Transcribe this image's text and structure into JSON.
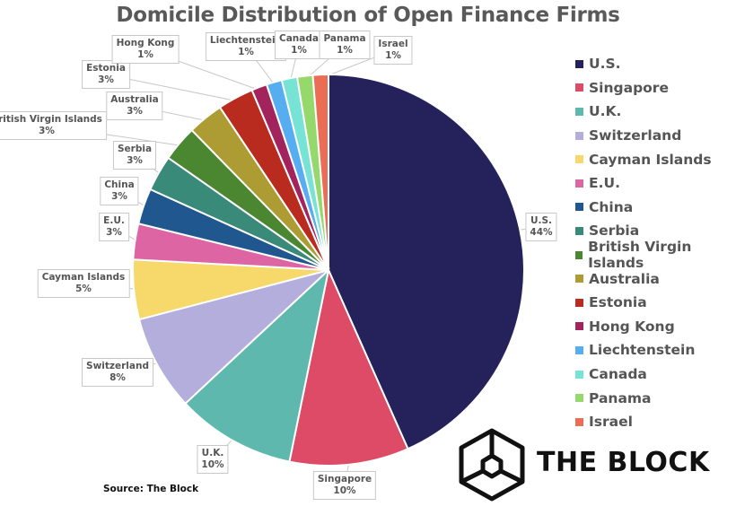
{
  "chart_data": {
    "type": "pie",
    "title": "Domicile Distribution of Open Finance Firms",
    "source": "Source: The Block",
    "start": "12 o'clock, clockwise",
    "legend_position": "right",
    "slices": [
      {
        "label": "U.S.",
        "value": 44,
        "pct": "44%",
        "color": "#25215a"
      },
      {
        "label": "Singapore",
        "value": 10,
        "pct": "10%",
        "color": "#dd4b66"
      },
      {
        "label": "U.K.",
        "value": 10,
        "pct": "10%",
        "color": "#5fb8ad"
      },
      {
        "label": "Switzerland",
        "value": 8,
        "pct": "8%",
        "color": "#b3aedc"
      },
      {
        "label": "Cayman Islands",
        "value": 5,
        "pct": "5%",
        "color": "#f6d96a"
      },
      {
        "label": "E.U.",
        "value": 3,
        "pct": "3%",
        "color": "#dd65a4"
      },
      {
        "label": "China",
        "value": 3,
        "pct": "3%",
        "color": "#21578f"
      },
      {
        "label": "Serbia",
        "value": 3,
        "pct": "3%",
        "color": "#3a8a79"
      },
      {
        "label": "British Virgin Islands",
        "value": 3,
        "pct": "3%",
        "color": "#4b8730"
      },
      {
        "label": "Australia",
        "value": 3,
        "pct": "3%",
        "color": "#ad9b33"
      },
      {
        "label": "Estonia",
        "value": 3,
        "pct": "3%",
        "color": "#b92b1f"
      },
      {
        "label": "Hong Kong",
        "value": 1.3,
        "pct": "1%",
        "color": "#a3245d"
      },
      {
        "label": "Liechtenstein",
        "value": 1.3,
        "pct": "1%",
        "color": "#56aef0"
      },
      {
        "label": "Canada",
        "value": 1.3,
        "pct": "1%",
        "color": "#76e3d4"
      },
      {
        "label": "Panama",
        "value": 1.3,
        "pct": "1%",
        "color": "#95d96c"
      },
      {
        "label": "Israel",
        "value": 1.3,
        "pct": "1%",
        "color": "#ec6d55"
      }
    ]
  },
  "brand": {
    "name": "THE BLOCK"
  }
}
